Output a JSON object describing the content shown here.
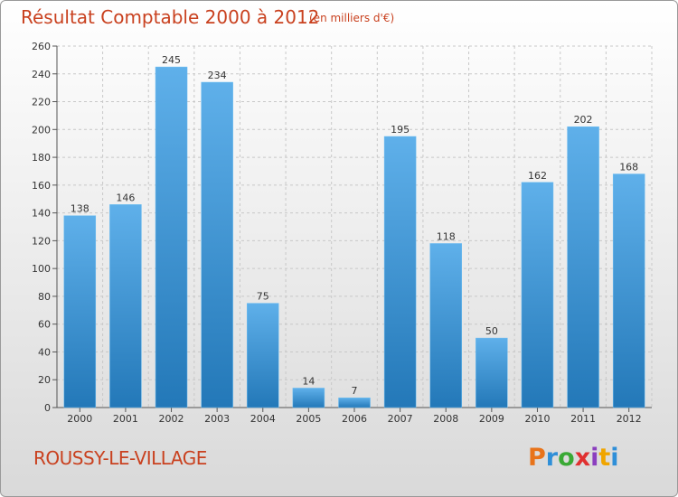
{
  "header": {
    "title": "Résultat Comptable 2000 à 2012",
    "unit": "(en milliers d'€)"
  },
  "footer": {
    "commune": "ROUSSY-LE-VILLAGE",
    "logo_text": "Proxiti"
  },
  "colors": {
    "title": "#c9411f",
    "bar_top": "#5fb0ea",
    "bar_bottom": "#2378b8",
    "logo": [
      "#e8731a",
      "#2f8fd8",
      "#3aa935",
      "#e03030",
      "#8b3fbf",
      "#f0a500",
      "#2f8fd8"
    ]
  },
  "chart_data": {
    "type": "bar",
    "title": "Résultat Comptable 2000 à 2012",
    "xlabel": "",
    "ylabel": "",
    "categories": [
      "2000",
      "2001",
      "2002",
      "2003",
      "2004",
      "2005",
      "2006",
      "2007",
      "2008",
      "2009",
      "2010",
      "2011",
      "2012"
    ],
    "values": [
      138,
      146,
      245,
      234,
      75,
      14,
      7,
      195,
      118,
      50,
      162,
      202,
      168
    ],
    "ylim": [
      0,
      260
    ],
    "yticks": [
      0,
      20,
      40,
      60,
      80,
      100,
      120,
      140,
      160,
      180,
      200,
      220,
      240,
      260
    ],
    "grid": true,
    "legend": "none"
  }
}
